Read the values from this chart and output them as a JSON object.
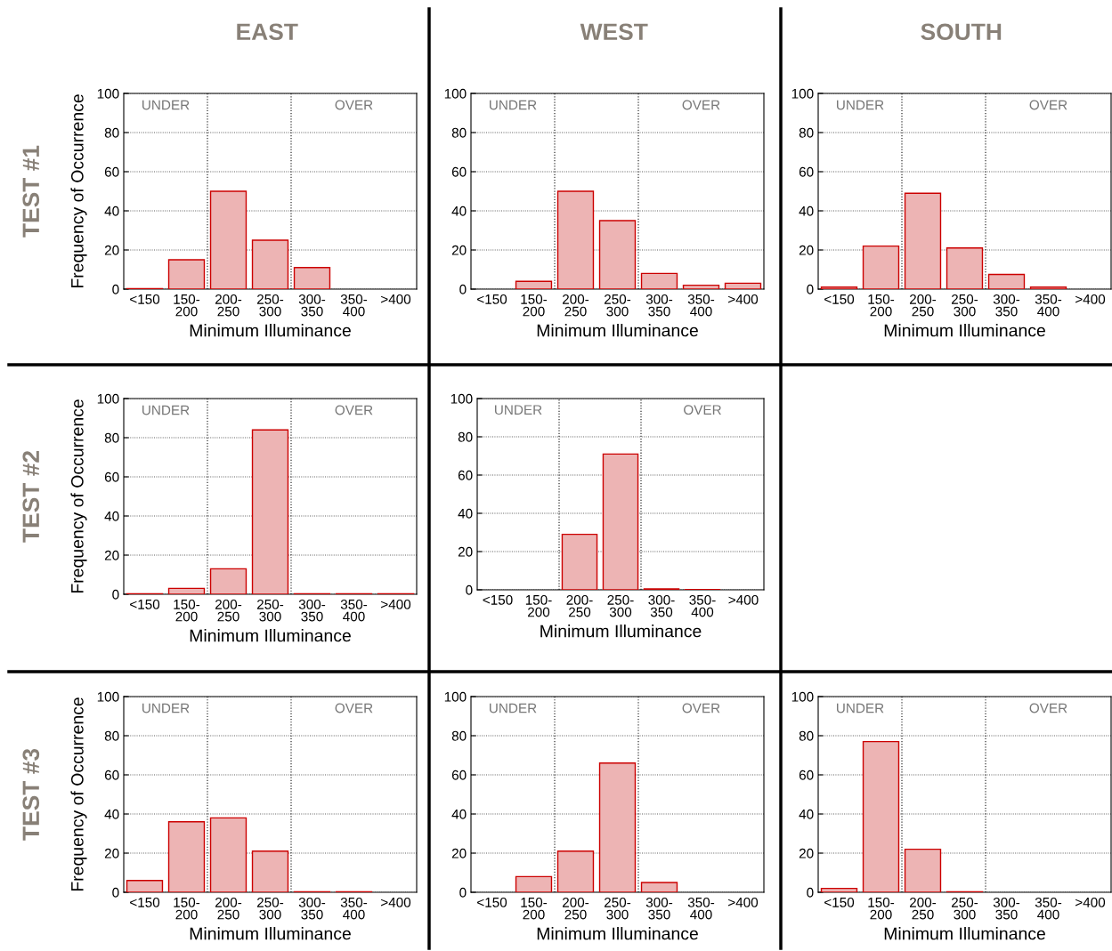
{
  "chart_data": [
    {
      "type": "bar",
      "title": "EAST",
      "annotations": [
        "TEST #1",
        "UNDER",
        "OVER"
      ],
      "xlabel": "Minimum Illuminance",
      "ylabel": "Frequency of Occurrence",
      "categories": [
        "<150",
        "150-\n200",
        "200-\n250",
        "250-\n300",
        "300-\n350",
        "350-\n400",
        ">400"
      ],
      "values": [
        0.3,
        15,
        50,
        25,
        11,
        0,
        0
      ],
      "color": "#edb4b4",
      "ylim": [
        0,
        100
      ],
      "yticks": [
        0,
        20,
        40,
        60,
        80,
        100
      ],
      "grid": "y"
    },
    {
      "type": "bar",
      "title": "WEST",
      "annotations": [
        "UNDER",
        "OVER"
      ],
      "xlabel": "Minimum Illuminance",
      "categories": [
        "<150",
        "150-\n200",
        "200-\n250",
        "250-\n300",
        "300-\n350",
        "350-\n400",
        ">400"
      ],
      "values": [
        0,
        4,
        50,
        35,
        8,
        2,
        3
      ],
      "color": "#edb4b4",
      "ylim": [
        0,
        100
      ],
      "yticks": [
        0,
        20,
        40,
        60,
        80,
        100
      ],
      "grid": "y"
    },
    {
      "type": "bar",
      "title": "SOUTH",
      "annotations": [
        "UNDER",
        "OVER"
      ],
      "xlabel": "Minimum Illuminance",
      "categories": [
        "<150",
        "150-\n200",
        "200-\n250",
        "250-\n300",
        "300-\n350",
        "350-\n400",
        ">400"
      ],
      "values": [
        1,
        22,
        49,
        21,
        7.5,
        1,
        0
      ],
      "color": "#edb4b4",
      "ylim": [
        0,
        100
      ],
      "yticks": [
        0,
        20,
        40,
        60,
        80,
        100
      ],
      "grid": "y"
    },
    {
      "type": "bar",
      "annotations": [
        "TEST #2",
        "UNDER",
        "OVER"
      ],
      "xlabel": "Minimum Illuminance",
      "ylabel": "Frequency of Occurrence",
      "categories": [
        "<150",
        "150-\n200",
        "200-\n250",
        "250-\n300",
        "300-\n350",
        "350-\n400",
        ">400"
      ],
      "values": [
        0.3,
        3,
        13,
        84,
        0.3,
        0.3,
        0.3
      ],
      "color": "#edb4b4",
      "ylim": [
        0,
        100
      ],
      "yticks": [
        0,
        20,
        40,
        60,
        80,
        100
      ],
      "grid": "y"
    },
    {
      "type": "bar",
      "annotations": [
        "UNDER",
        "OVER"
      ],
      "xlabel": "Minimum Illuminance",
      "categories": [
        "<150",
        "150-\n200",
        "200-\n250",
        "250-\n300",
        "300-\n350",
        "350-\n400",
        ">400"
      ],
      "values": [
        0,
        0,
        29,
        71,
        0.5,
        0.2,
        0
      ],
      "color": "#edb4b4",
      "ylim": [
        0,
        100
      ],
      "yticks": [
        0,
        20,
        40,
        60,
        80,
        100
      ],
      "grid": "y"
    },
    {
      "type": "bar",
      "annotations": [
        "TEST #3",
        "UNDER",
        "OVER"
      ],
      "xlabel": "Minimum Illuminance",
      "ylabel": "Frequency of Occurrence",
      "categories": [
        "<150",
        "150-\n200",
        "200-\n250",
        "250-\n300",
        "300-\n350",
        "350-\n400",
        ">400"
      ],
      "values": [
        6,
        36,
        38,
        21,
        0.3,
        0.3,
        0
      ],
      "color": "#edb4b4",
      "ylim": [
        0,
        100
      ],
      "yticks": [
        0,
        20,
        40,
        60,
        80,
        100
      ],
      "grid": "y"
    },
    {
      "type": "bar",
      "annotations": [
        "UNDER",
        "OVER"
      ],
      "xlabel": "Minimum Illuminance",
      "categories": [
        "<150",
        "150-\n200",
        "200-\n250",
        "250-\n300",
        "300-\n350",
        "350-\n400",
        ">400"
      ],
      "values": [
        0,
        8,
        21,
        66,
        5,
        0,
        0
      ],
      "color": "#edb4b4",
      "ylim": [
        0,
        100
      ],
      "yticks": [
        0,
        20,
        40,
        60,
        80,
        100
      ],
      "grid": "y"
    },
    {
      "type": "bar",
      "annotations": [
        "UNDER",
        "OVER"
      ],
      "xlabel": "Minimum Illuminance",
      "categories": [
        "<150",
        "150-\n200",
        "200-\n250",
        "250-\n300",
        "300-\n350",
        "350-\n400",
        ">400"
      ],
      "values": [
        2,
        77,
        22,
        0.3,
        0,
        0,
        0
      ],
      "color": "#edb4b4",
      "ylim": [
        0,
        100
      ],
      "yticks": [
        0,
        20,
        40,
        60,
        80,
        100
      ],
      "grid": "y"
    }
  ]
}
